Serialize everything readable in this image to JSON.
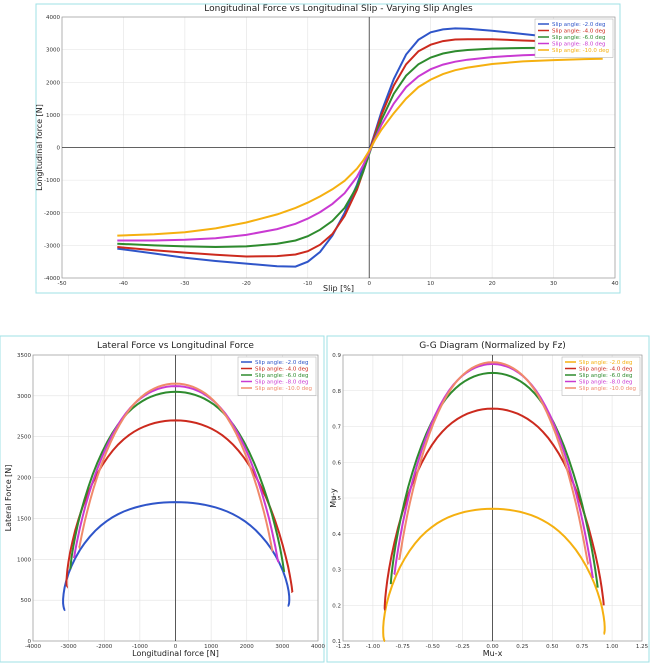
{
  "chart_data": [
    {
      "type": "line",
      "title": "Longitudinal Force vs Longitudinal Slip - Varying Slip Angles",
      "xlabel": "Slip [%]",
      "ylabel": "Longitudinal force [N]",
      "xlim": [
        -50,
        40
      ],
      "ylim": [
        -4000,
        4000
      ],
      "xticks": [
        "-50",
        "-40",
        "-30",
        "-20",
        "-10",
        "0",
        "10",
        "20",
        "30",
        "40"
      ],
      "yticks": [
        "-4000",
        "-3000",
        "-2000",
        "-1000",
        "0",
        "1000",
        "2000",
        "3000",
        "4000"
      ],
      "grid": true,
      "legend": "top-right",
      "series": [
        {
          "name": "Slip angle: -2.0 deg",
          "color": "#2f55c9",
          "x": [
            -41,
            -35,
            -30,
            -25,
            -20,
            -15,
            -12,
            -10,
            -8,
            -6,
            -4,
            -2,
            -1,
            0,
            1,
            2,
            4,
            6,
            8,
            10,
            12,
            14,
            16,
            20,
            25,
            30,
            35
          ],
          "y": [
            -3100,
            -3250,
            -3380,
            -3480,
            -3560,
            -3640,
            -3650,
            -3500,
            -3200,
            -2700,
            -2000,
            -1150,
            -600,
            -100,
            500,
            1100,
            2100,
            2850,
            3300,
            3530,
            3620,
            3650,
            3640,
            3580,
            3480,
            3380,
            3280
          ]
        },
        {
          "name": "Slip angle: -4.0 deg",
          "color": "#cc2a1e",
          "x": [
            -41,
            -35,
            -30,
            -25,
            -20,
            -15,
            -12,
            -10,
            -8,
            -6,
            -4,
            -2,
            -1,
            0,
            1,
            2,
            4,
            6,
            8,
            10,
            12,
            14,
            16,
            20,
            25,
            30,
            35
          ],
          "y": [
            -3050,
            -3150,
            -3220,
            -3290,
            -3340,
            -3330,
            -3280,
            -3180,
            -2980,
            -2650,
            -2100,
            -1300,
            -750,
            -150,
            450,
            1000,
            1900,
            2550,
            2950,
            3150,
            3260,
            3310,
            3320,
            3320,
            3280,
            3250,
            3220
          ]
        },
        {
          "name": "Slip angle: -6.0 deg",
          "color": "#2e8b2e",
          "x": [
            -41,
            -35,
            -30,
            -25,
            -20,
            -15,
            -12,
            -10,
            -8,
            -6,
            -4,
            -2,
            -1,
            0,
            1,
            2,
            4,
            6,
            8,
            10,
            12,
            14,
            16,
            20,
            25,
            30,
            35
          ],
          "y": [
            -2950,
            -3000,
            -3030,
            -3050,
            -3030,
            -2950,
            -2850,
            -2720,
            -2520,
            -2250,
            -1850,
            -1200,
            -750,
            -200,
            350,
            850,
            1650,
            2200,
            2550,
            2760,
            2880,
            2950,
            2990,
            3030,
            3050,
            3060,
            3060
          ]
        },
        {
          "name": "Slip angle: -8.0 deg",
          "color": "#c93ad2",
          "x": [
            -41,
            -35,
            -30,
            -25,
            -20,
            -15,
            -12,
            -10,
            -8,
            -6,
            -4,
            -2,
            -1,
            0,
            1,
            2,
            4,
            6,
            8,
            10,
            12,
            14,
            16,
            20,
            25,
            30,
            35
          ],
          "y": [
            -2850,
            -2850,
            -2830,
            -2780,
            -2680,
            -2500,
            -2340,
            -2180,
            -1980,
            -1730,
            -1400,
            -900,
            -550,
            -150,
            300,
            700,
            1350,
            1850,
            2180,
            2400,
            2540,
            2630,
            2690,
            2770,
            2830,
            2860,
            2880
          ]
        },
        {
          "name": "Slip angle: -10.0 deg",
          "color": "#f5b010",
          "x": [
            -41,
            -35,
            -30,
            -25,
            -20,
            -15,
            -12,
            -10,
            -8,
            -6,
            -4,
            -2,
            -1,
            0,
            1,
            2,
            4,
            6,
            8,
            10,
            12,
            14,
            16,
            20,
            25,
            30,
            35,
            38
          ],
          "y": [
            -2700,
            -2660,
            -2600,
            -2480,
            -2300,
            -2050,
            -1850,
            -1690,
            -1500,
            -1280,
            -1020,
            -650,
            -400,
            -100,
            250,
            550,
            1050,
            1500,
            1850,
            2080,
            2250,
            2370,
            2450,
            2560,
            2640,
            2680,
            2710,
            2720
          ]
        }
      ]
    },
    {
      "type": "line",
      "title": "Lateral Force vs Longitudinal Force",
      "xlabel": "Longitudinal force [N]",
      "ylabel": "Lateral Force [N]",
      "xlim": [
        -4000,
        4000
      ],
      "ylim": [
        0,
        3500
      ],
      "xticks": [
        "-4000",
        "-3000",
        "-2000",
        "-1000",
        "0",
        "1000",
        "2000",
        "3000",
        "4000"
      ],
      "yticks": [
        "0",
        "500",
        "1000",
        "1500",
        "2000",
        "2500",
        "3000",
        "3500"
      ],
      "grid": true,
      "legend": "top-right",
      "series": [
        {
          "name": "Slip angle: -2.0 deg",
          "color": "#2f55c9",
          "a": 3650,
          "b": 1700,
          "fx0": -3100,
          "fy0": 380,
          "fx1": 3150,
          "fy1": 430
        },
        {
          "name": "Slip angle: -4.0 deg",
          "color": "#cc2a1e",
          "a": 3300,
          "b": 2700,
          "fx0": -3050,
          "fy0": 680,
          "fx1": 3280,
          "fy1": 600
        },
        {
          "name": "Slip angle: -6.0 deg",
          "color": "#2e8b2e",
          "a": 3050,
          "b": 3050,
          "fx0": -2950,
          "fy0": 880,
          "fx1": 3050,
          "fy1": 850
        },
        {
          "name": "Slip angle: -8.0 deg",
          "color": "#c93ad2",
          "a": 2850,
          "b": 3120,
          "fx0": -2850,
          "fy0": 1020,
          "fx1": 2880,
          "fy1": 980
        },
        {
          "name": "Slip angle: -10.0 deg",
          "color": "#f08a6a",
          "a": 2700,
          "b": 3150,
          "fx0": -2700,
          "fy0": 1160,
          "fx1": 2720,
          "fy1": 1120
        }
      ]
    },
    {
      "type": "line",
      "title": "G-G Diagram (Normalized by Fz)",
      "xlabel": "Mu-x",
      "ylabel": "Mu-y",
      "xlim": [
        -1.25,
        1.25
      ],
      "ylim": [
        0.1,
        0.9
      ],
      "xticks": [
        "-1.25",
        "-1.00",
        "-0.75",
        "-0.50",
        "-0.25",
        "0.00",
        "0.25",
        "0.50",
        "0.75",
        "1.00",
        "1.25"
      ],
      "yticks": [
        "0.1",
        "0.2",
        "0.3",
        "0.4",
        "0.5",
        "0.6",
        "0.7",
        "0.8",
        "0.9"
      ],
      "grid": true,
      "legend": "top-right",
      "series": [
        {
          "name": "Slip angle: -2.0 deg",
          "color": "#f5b010",
          "a": 1.05,
          "b": 0.47,
          "fx0": -0.9,
          "fy0": 0.1,
          "fx1": 0.93,
          "fy1": 0.12
        },
        {
          "name": "Slip angle: -4.0 deg",
          "color": "#cc2a1e",
          "a": 0.95,
          "b": 0.75,
          "fx0": -0.9,
          "fy0": 0.19,
          "fx1": 0.93,
          "fy1": 0.2
        },
        {
          "name": "Slip angle: -6.0 deg",
          "color": "#2e8b2e",
          "a": 0.88,
          "b": 0.85,
          "fx0": -0.85,
          "fy0": 0.26,
          "fx1": 0.88,
          "fy1": 0.25
        },
        {
          "name": "Slip angle: -8.0 deg",
          "color": "#c93ad2",
          "a": 0.82,
          "b": 0.875,
          "fx0": -0.82,
          "fy0": 0.29,
          "fx1": 0.84,
          "fy1": 0.28
        },
        {
          "name": "Slip angle: -10.0 deg",
          "color": "#f08a6a",
          "a": 0.78,
          "b": 0.88,
          "fx0": -0.78,
          "fy0": 0.33,
          "fx1": 0.8,
          "fy1": 0.32
        }
      ]
    }
  ]
}
